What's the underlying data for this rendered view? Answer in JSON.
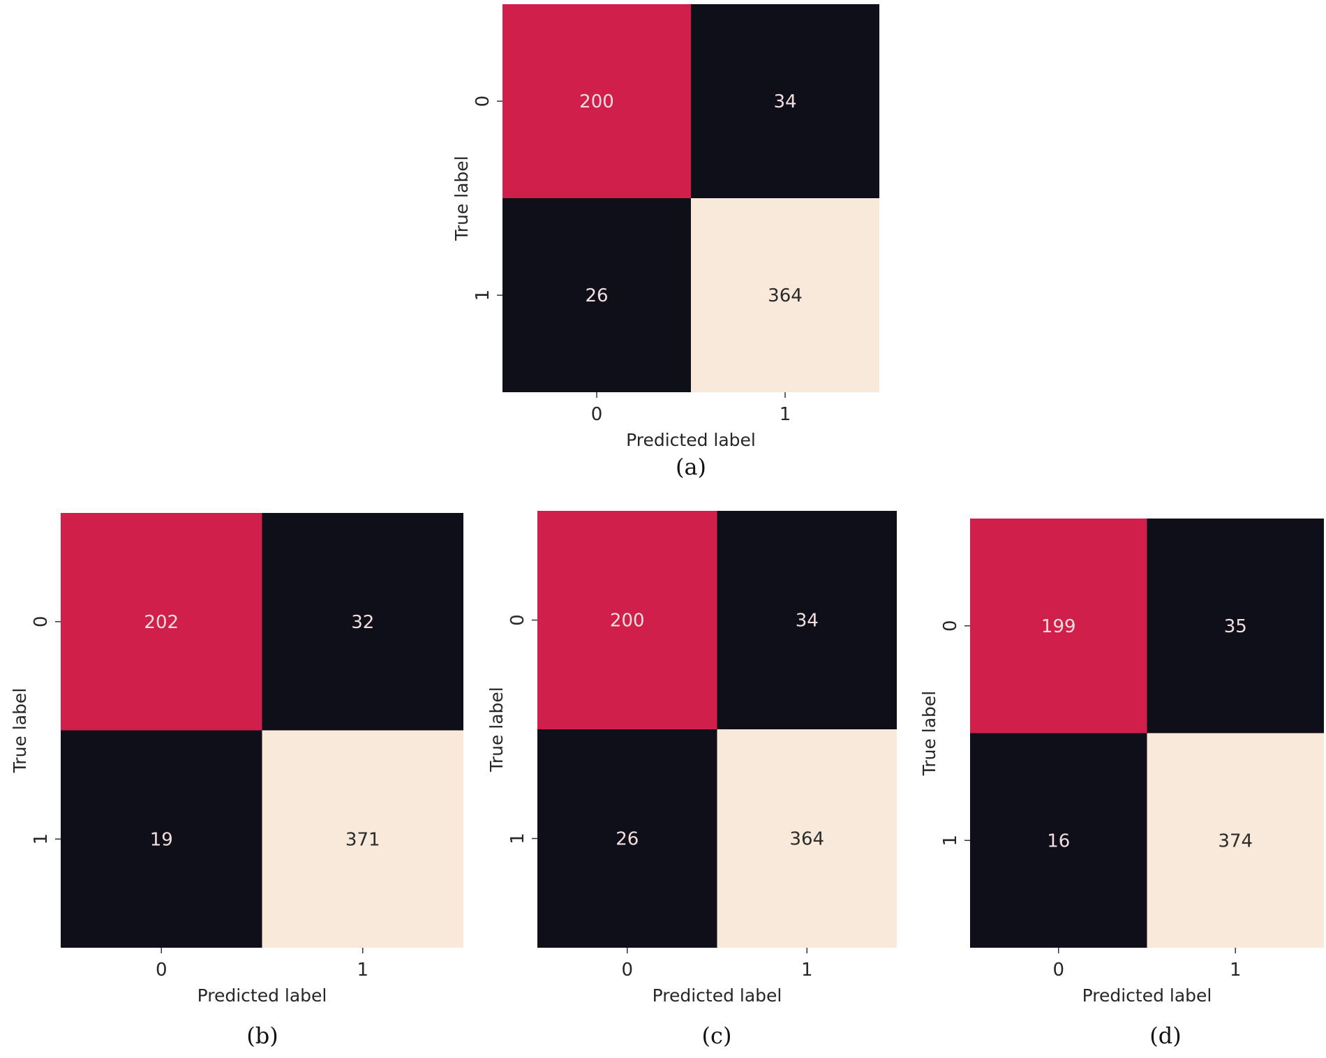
{
  "colors": {
    "cell_fill": {
      "high_correct": "#f8e9db",
      "mid_correct": "#cf1f4a",
      "error": "#0f0f1a"
    },
    "text_on_dark": "#f2dede",
    "text_on_light": "#2b2b2b"
  },
  "chart_data": [
    {
      "type": "heatmap",
      "caption": "(a)",
      "xlabel": "Predicted label",
      "ylabel": "True label",
      "x_ticks": [
        "0",
        "1"
      ],
      "y_ticks": [
        "0",
        "1"
      ],
      "matrix": [
        [
          200,
          34
        ],
        [
          26,
          364
        ]
      ],
      "grid": false
    },
    {
      "type": "heatmap",
      "caption": "(b)",
      "xlabel": "Predicted label",
      "ylabel": "True label",
      "x_ticks": [
        "0",
        "1"
      ],
      "y_ticks": [
        "0",
        "1"
      ],
      "matrix": [
        [
          202,
          32
        ],
        [
          19,
          371
        ]
      ],
      "grid": false
    },
    {
      "type": "heatmap",
      "caption": "(c)",
      "xlabel": "Predicted label",
      "ylabel": "True label",
      "x_ticks": [
        "0",
        "1"
      ],
      "y_ticks": [
        "0",
        "1"
      ],
      "matrix": [
        [
          200,
          34
        ],
        [
          26,
          364
        ]
      ],
      "grid": false
    },
    {
      "type": "heatmap",
      "caption": "(d)",
      "xlabel": "Predicted label",
      "ylabel": "True label",
      "x_ticks": [
        "0",
        "1"
      ],
      "y_ticks": [
        "0",
        "1"
      ],
      "matrix": [
        [
          199,
          35
        ],
        [
          16,
          374
        ]
      ],
      "grid": false
    }
  ]
}
